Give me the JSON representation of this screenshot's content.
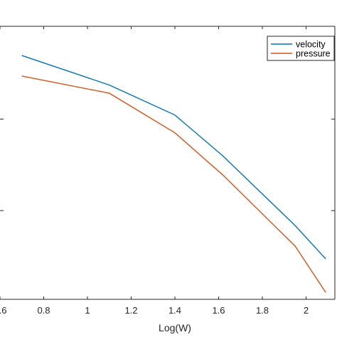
{
  "chart_data": {
    "type": "line",
    "xlabel": "Log(W)",
    "ylabel": "",
    "title": "",
    "xlim": [
      0.6,
      2.1
    ],
    "x_ticks": [
      0.6,
      0.8,
      1,
      1.2,
      1.4,
      1.6,
      1.8,
      2
    ],
    "x_tick_labels": [
      ".6",
      "0.8",
      "1",
      "1.2",
      "1.4",
      "1.6",
      "1.8",
      "2"
    ],
    "ylim": [
      0,
      1
    ],
    "grid": false,
    "legend_position": "top-right",
    "series": [
      {
        "name": "velocity",
        "color": "#0072BD",
        "x": [
          0.7,
          1.1,
          1.4,
          1.62,
          1.95,
          2.09
        ],
        "y": [
          0.893,
          0.785,
          0.675,
          0.525,
          0.27,
          0.148
        ]
      },
      {
        "name": "pressure",
        "color": "#D95319",
        "x": [
          0.7,
          1.1,
          1.4,
          1.62,
          1.95,
          2.09
        ],
        "y": [
          0.818,
          0.755,
          0.61,
          0.455,
          0.195,
          0.025
        ]
      }
    ]
  }
}
